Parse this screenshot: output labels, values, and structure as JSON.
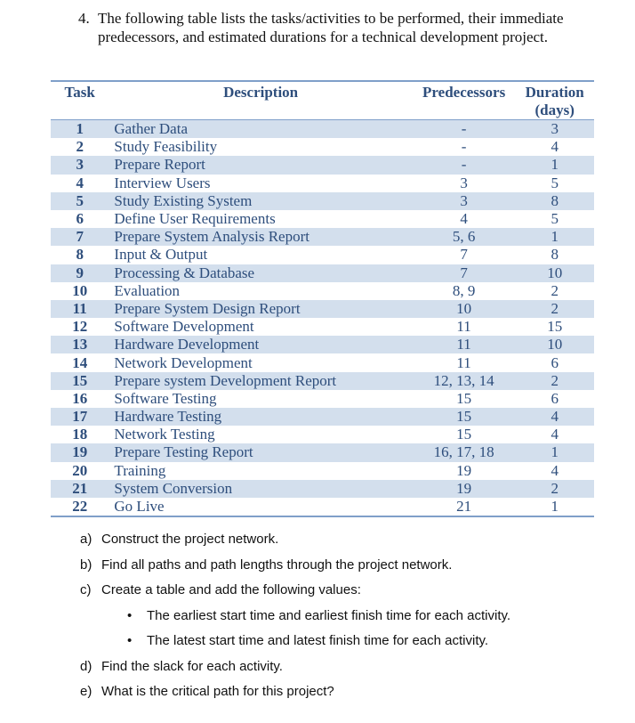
{
  "problem": {
    "number": "4.",
    "text": "The following table lists the tasks/activities to be performed, their immediate predecessors, and estimated durations for a technical development project."
  },
  "table": {
    "headers": [
      "Task",
      "Description",
      "Predecessors",
      "Duration (days)"
    ],
    "rows": [
      [
        "1",
        "Gather Data",
        "-",
        "3"
      ],
      [
        "2",
        "Study Feasibility",
        "-",
        "4"
      ],
      [
        "3",
        "Prepare Report",
        "-",
        "1"
      ],
      [
        "4",
        "Interview Users",
        "3",
        "5"
      ],
      [
        "5",
        "Study Existing System",
        "3",
        "8"
      ],
      [
        "6",
        "Define User Requirements",
        "4",
        "5"
      ],
      [
        "7",
        "Prepare System Analysis Report",
        "5, 6",
        "1"
      ],
      [
        "8",
        "Input & Output",
        "7",
        "8"
      ],
      [
        "9",
        "Processing & Database",
        "7",
        "10"
      ],
      [
        "10",
        "Evaluation",
        "8, 9",
        "2"
      ],
      [
        "11",
        "Prepare System Design Report",
        "10",
        "2"
      ],
      [
        "12",
        "Software Development",
        "11",
        "15"
      ],
      [
        "13",
        "Hardware Development",
        "11",
        "10"
      ],
      [
        "14",
        "Network Development",
        "11",
        "6"
      ],
      [
        "15",
        "Prepare system Development Report",
        "12, 13, 14",
        "2"
      ],
      [
        "16",
        "Software Testing",
        "15",
        "6"
      ],
      [
        "17",
        "Hardware Testing",
        "15",
        "4"
      ],
      [
        "18",
        "Network Testing",
        "15",
        "4"
      ],
      [
        "19",
        "Prepare Testing Report",
        "16, 17, 18",
        "1"
      ],
      [
        "20",
        "Training",
        "19",
        "4"
      ],
      [
        "21",
        "System Conversion",
        "19",
        "2"
      ],
      [
        "22",
        "Go Live",
        "21",
        "1"
      ]
    ]
  },
  "questions": [
    {
      "label": "a)",
      "text": "Construct the project network."
    },
    {
      "label": "b)",
      "text": "Find all paths and path lengths through the project network."
    },
    {
      "label": "c)",
      "text": "Create a table and add the following values:"
    },
    {
      "bullet": "•",
      "text": "The earliest start time and earliest finish time for each activity."
    },
    {
      "bullet": "•",
      "text": "The latest start time and latest finish time for each activity."
    },
    {
      "label": "d)",
      "text": "Find the slack for each activity."
    },
    {
      "label": "e)",
      "text": "What is the critical path for this project?"
    }
  ],
  "colors": {
    "table_text": "#2e4e7c",
    "row_shade": "#d3dfed",
    "rule": "#7f9fc9"
  }
}
